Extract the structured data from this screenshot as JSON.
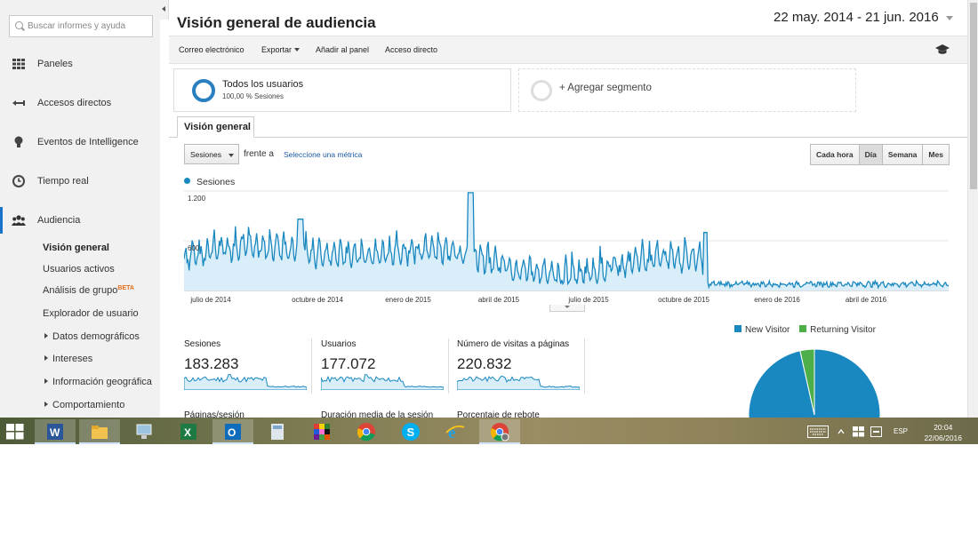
{
  "sidebar": {
    "search_placeholder": "Buscar informes y ayuda",
    "items": [
      {
        "label": "Paneles"
      },
      {
        "label": "Accesos directos"
      },
      {
        "label": "Eventos de Intelligence"
      },
      {
        "label": "Tiempo real"
      },
      {
        "label": "Audiencia"
      }
    ],
    "audience_sub": [
      {
        "label": "Visión general"
      },
      {
        "label": "Usuarios activos"
      },
      {
        "label": "Análisis de grupo",
        "badge": "BETA"
      },
      {
        "label": "Explorador de usuario"
      },
      {
        "label": "Datos demográficos"
      },
      {
        "label": "Intereses"
      },
      {
        "label": "Información geográfica"
      },
      {
        "label": "Comportamiento"
      }
    ]
  },
  "header": {
    "title": "Visión general de audiencia",
    "date_range": "22 may. 2014 - 21 jun. 2016"
  },
  "toolbar": {
    "email": "Correo electrónico",
    "export": "Exportar",
    "add_to_dashboard": "Añadir al panel",
    "shortcut": "Acceso directo"
  },
  "segments": {
    "all_users_title": "Todos los usuarios",
    "all_users_sub": "100,00 % Sesiones",
    "add_segment": "+ Agregar segmento"
  },
  "tabs": {
    "overview": "Visión general"
  },
  "chart_controls": {
    "metric": "Sesiones",
    "versus": "frente a",
    "select_metric": "Seleccione una métrica",
    "periods": [
      "Cada hora",
      "Día",
      "Semana",
      "Mes"
    ],
    "active_period": "Día"
  },
  "chart_data": {
    "type": "line",
    "series": [
      {
        "name": "Sesiones",
        "color": "#1a88c0"
      }
    ],
    "y_ticks": [
      "1.200",
      "600"
    ],
    "x_ticks": [
      "julio de 2014",
      "octubre de 2014",
      "enero de 2015",
      "abril de 2015",
      "julio de 2015",
      "octubre de 2015",
      "enero de 2016",
      "abril de 2016"
    ],
    "ylim": [
      0,
      1200
    ],
    "fill": true
  },
  "summary": [
    {
      "label": "Sesiones",
      "value": "183.283"
    },
    {
      "label": "Usuarios",
      "value": "177.072"
    },
    {
      "label": "Número de visitas a páginas",
      "value": "220.832"
    }
  ],
  "summary_row2": [
    "Páginas/sesión",
    "Duración media de la sesión",
    "Porcentaje de rebote"
  ],
  "pie": {
    "type": "pie",
    "legend": [
      {
        "label": "New Visitor",
        "color": "#1a88c0"
      },
      {
        "label": "Returning Visitor",
        "color": "#4daf4a"
      }
    ],
    "values": [
      96.5,
      3.5
    ]
  },
  "taskbar": {
    "apps": [
      "word-icon",
      "file-explorer-icon",
      "computer-icon",
      "excel-icon",
      "outlook-icon",
      "calculator-icon",
      "app-grid-icon",
      "chrome-icon",
      "skype-icon",
      "ie-icon",
      "chrome-user-icon"
    ],
    "language": "ESP",
    "time": "20:04",
    "date": "22/06/2016"
  }
}
